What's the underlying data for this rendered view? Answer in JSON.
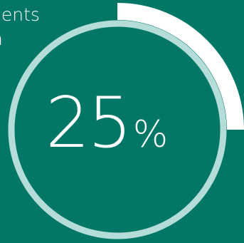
{
  "caption": {
    "line1": "dents",
    "line2": "n"
  },
  "chart_data": {
    "type": "pie",
    "value_label": "25",
    "unit_label": "%",
    "value": 25,
    "max": 100,
    "colors": {
      "background": "#027766",
      "track": "#b4dcd9",
      "progress": "#ffffff"
    }
  }
}
